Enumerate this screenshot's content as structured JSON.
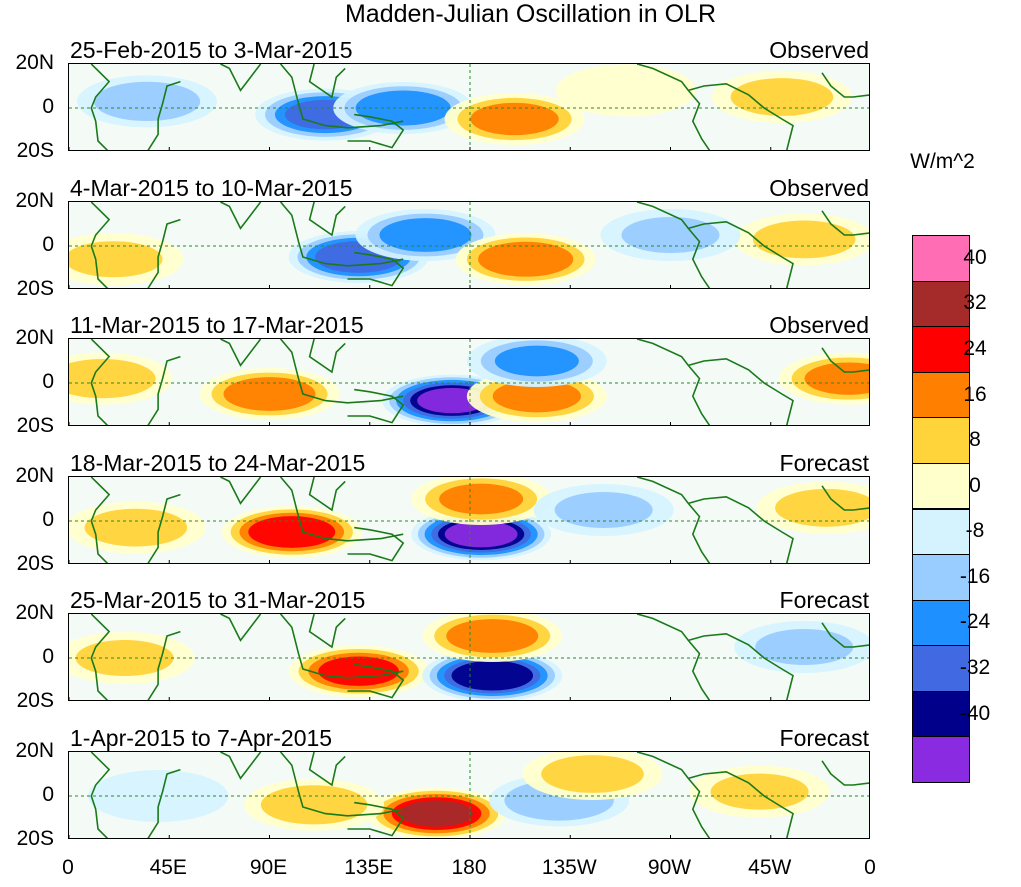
{
  "title": "Madden-Julian Oscillation in OLR",
  "chart_data": {
    "type": "heatmap",
    "variable": "OLR anomaly",
    "units": "W/m^2",
    "xaxis": {
      "ticks": [
        "0",
        "45E",
        "90E",
        "135E",
        "180",
        "135W",
        "90W",
        "45W",
        "0"
      ],
      "range": [
        0,
        360
      ]
    },
    "yaxis": {
      "ticks": [
        "20N",
        "0",
        "20S"
      ],
      "range": [
        -20,
        20
      ]
    },
    "colorbar": {
      "levels": [
        40,
        32,
        24,
        16,
        8,
        0,
        -8,
        -16,
        -24,
        -32,
        -40
      ],
      "colors": [
        "#ff6eb4",
        "#a52a2a",
        "#ff0000",
        "#ff7f00",
        "#ffd33a",
        "#ffffcc",
        "#d5f3ff",
        "#99ccff",
        "#1e90ff",
        "#4169e1",
        "#00008b",
        "#8a2be2"
      ]
    },
    "panels": [
      {
        "title": "25-Feb-2015 to 3-Mar-2015",
        "label": "Observed",
        "anomalies": [
          {
            "lon": 115,
            "lat": -3,
            "value": -26
          },
          {
            "lon": 150,
            "lat": 0,
            "value": -22
          },
          {
            "lon": 35,
            "lat": 3,
            "value": -12
          },
          {
            "lon": 200,
            "lat": -5,
            "value": 18
          },
          {
            "lon": 320,
            "lat": 5,
            "value": 10
          },
          {
            "lon": 250,
            "lat": 8,
            "value": 6
          }
        ]
      },
      {
        "title": "4-Mar-2015 to 10-Mar-2015",
        "label": "Observed",
        "anomalies": [
          {
            "lon": 130,
            "lat": -5,
            "value": -30
          },
          {
            "lon": 160,
            "lat": 5,
            "value": -20
          },
          {
            "lon": 205,
            "lat": -6,
            "value": 22
          },
          {
            "lon": 330,
            "lat": 3,
            "value": 10
          },
          {
            "lon": 20,
            "lat": -6,
            "value": 8
          },
          {
            "lon": 270,
            "lat": 5,
            "value": -8
          }
        ]
      },
      {
        "title": "11-Mar-2015 to 17-Mar-2015",
        "label": "Observed",
        "anomalies": [
          {
            "lon": 172,
            "lat": -8,
            "value": -40
          },
          {
            "lon": 90,
            "lat": -5,
            "value": 20
          },
          {
            "lon": 210,
            "lat": -6,
            "value": 18
          },
          {
            "lon": 15,
            "lat": 2,
            "value": 12
          },
          {
            "lon": 350,
            "lat": 2,
            "value": 18
          },
          {
            "lon": 210,
            "lat": 10,
            "value": -16
          }
        ]
      },
      {
        "title": "18-Mar-2015 to 24-Mar-2015",
        "label": "Forecast",
        "anomalies": [
          {
            "lon": 100,
            "lat": -5,
            "value": 30
          },
          {
            "lon": 185,
            "lat": -6,
            "value": -42
          },
          {
            "lon": 185,
            "lat": 10,
            "value": 16
          },
          {
            "lon": 30,
            "lat": -3,
            "value": 10
          },
          {
            "lon": 340,
            "lat": 6,
            "value": 10
          },
          {
            "lon": 240,
            "lat": 5,
            "value": -8
          }
        ]
      },
      {
        "title": "25-Mar-2015 to 31-Mar-2015",
        "label": "Forecast",
        "anomalies": [
          {
            "lon": 130,
            "lat": -6,
            "value": 26
          },
          {
            "lon": 190,
            "lat": -8,
            "value": -38
          },
          {
            "lon": 190,
            "lat": 10,
            "value": 20
          },
          {
            "lon": 25,
            "lat": 0,
            "value": 8
          },
          {
            "lon": 330,
            "lat": 5,
            "value": -8
          }
        ]
      },
      {
        "title": "1-Apr-2015 to 7-Apr-2015",
        "label": "Forecast",
        "anomalies": [
          {
            "lon": 165,
            "lat": -8,
            "value": 32
          },
          {
            "lon": 110,
            "lat": -4,
            "value": 12
          },
          {
            "lon": 220,
            "lat": -2,
            "value": -14
          },
          {
            "lon": 310,
            "lat": 2,
            "value": 8
          },
          {
            "lon": 40,
            "lat": 0,
            "value": -6
          },
          {
            "lon": 235,
            "lat": 10,
            "value": 10
          }
        ]
      }
    ]
  }
}
